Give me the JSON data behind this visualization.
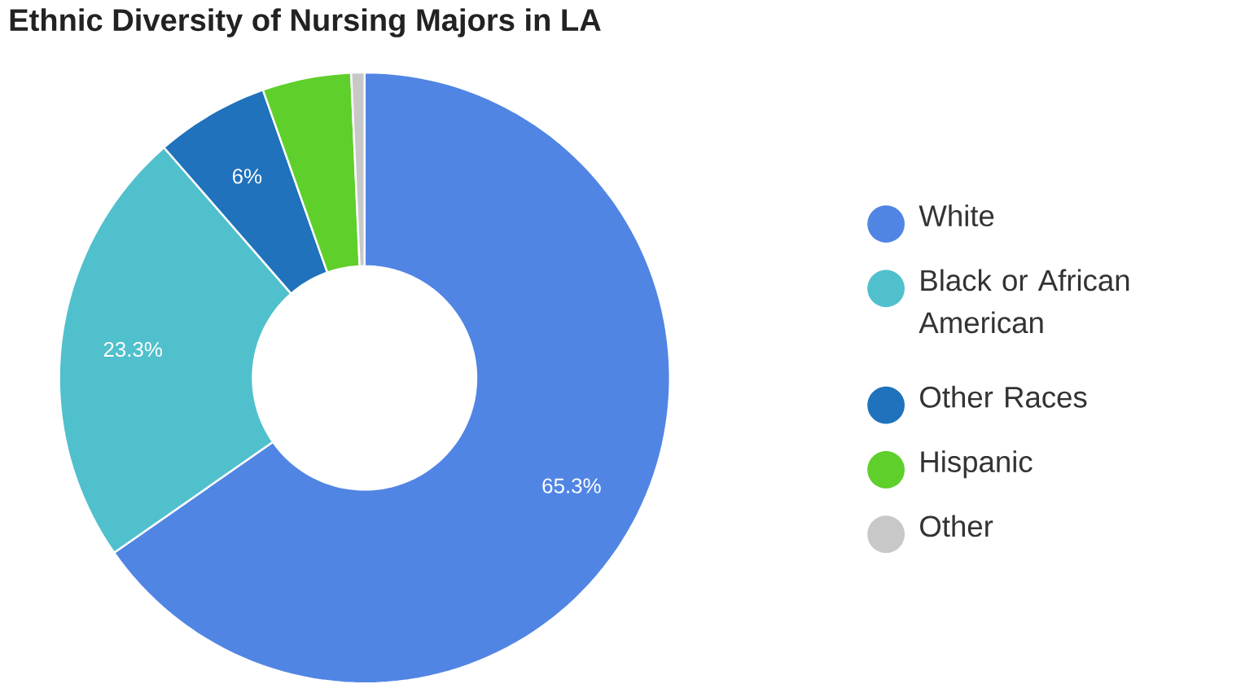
{
  "chart_data": {
    "type": "donut",
    "title": "Ethnic Diversity of Nursing Majors in LA",
    "categories": [
      "White",
      "Black or African American",
      "Other Races",
      "Hispanic",
      "Other"
    ],
    "values": [
      65.3,
      23.3,
      6,
      4.7,
      0.7
    ],
    "colors": [
      "#5185e4",
      "#50c0cc",
      "#1f72bb",
      "#5fcf2b",
      "#c8c8c8"
    ],
    "value_labels": [
      "65.3%",
      "23.3%",
      "6%",
      null,
      null
    ],
    "legend": "right"
  }
}
